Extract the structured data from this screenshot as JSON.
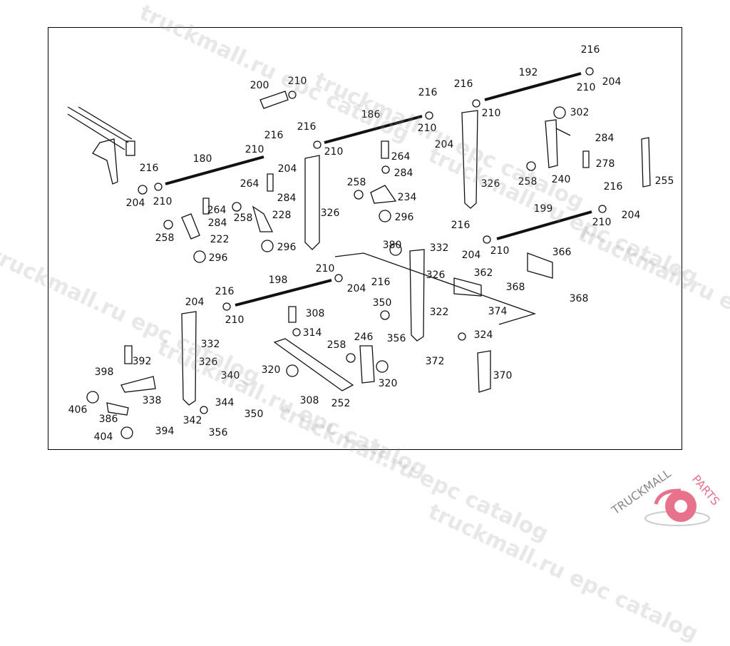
{
  "diagram": {
    "labels": [
      "216",
      "192",
      "210",
      "204",
      "200",
      "210",
      "216",
      "216",
      "210",
      "186",
      "210",
      "204",
      "302",
      "284",
      "278",
      "240",
      "258",
      "255",
      "216",
      "216",
      "210",
      "204",
      "210",
      "264",
      "284",
      "258",
      "234",
      "296",
      "180",
      "216",
      "210",
      "204",
      "264",
      "284",
      "264",
      "284",
      "258",
      "228",
      "326",
      "326",
      "258",
      "222",
      "296",
      "296",
      "216",
      "199",
      "204",
      "210",
      "216",
      "204",
      "210",
      "380",
      "332",
      "326",
      "366",
      "362",
      "368",
      "374",
      "368",
      "210",
      "216",
      "198",
      "204",
      "204",
      "216",
      "210",
      "308",
      "314",
      "350",
      "356",
      "322",
      "324",
      "246",
      "258",
      "332",
      "326",
      "340",
      "344",
      "392",
      "398",
      "338",
      "320",
      "320",
      "308",
      "252",
      "372",
      "370",
      "406",
      "386",
      "350",
      "342",
      "356",
      "394",
      "404"
    ]
  },
  "watermarks": [
    "truckmall.ru epc catalog"
  ],
  "logo": {
    "text_gray": "TRUCKMALL",
    "text_pink": "PARTS",
    "color_pink": "#e8728c",
    "color_gray": "#888888"
  }
}
